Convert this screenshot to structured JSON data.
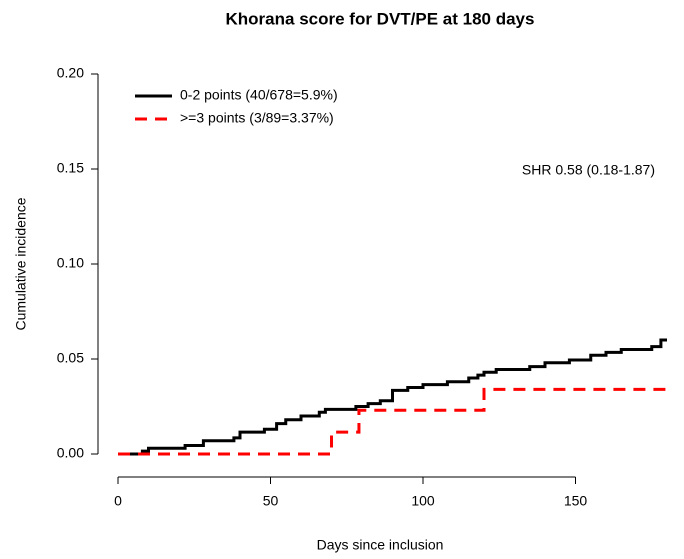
{
  "chart_data": {
    "type": "step",
    "title": "Khorana score for DVT/PE at 180 days",
    "x_label": "Days since inclusion",
    "y_label": "Cumulative incidence",
    "annotation": "SHR 0.58 (0.18-1.87)",
    "xlim": [
      0,
      180
    ],
    "ylim": [
      0,
      0.2
    ],
    "xticks": [
      0,
      50,
      100,
      150
    ],
    "yticks": [
      {
        "value": 0,
        "label": "0.00"
      },
      {
        "value": 0.05,
        "label": "0.05"
      },
      {
        "value": 0.1,
        "label": "0.10"
      },
      {
        "value": 0.15,
        "label": "0.15"
      },
      {
        "value": 0.2,
        "label": "0.20"
      }
    ],
    "legend": "top-left",
    "series": [
      {
        "name": "0-2 points (40/678=5.9%)",
        "color": "#000000",
        "dash": false,
        "x": [
          0,
          8,
          10,
          22,
          28,
          38,
          40,
          48,
          52,
          55,
          60,
          66,
          68,
          78,
          82,
          86,
          90,
          95,
          100,
          108,
          115,
          118,
          120,
          124,
          135,
          140,
          148,
          155,
          160,
          165,
          175,
          178,
          180
        ],
        "values": [
          0,
          0.0015,
          0.003,
          0.0045,
          0.007,
          0.0085,
          0.0115,
          0.013,
          0.016,
          0.018,
          0.02,
          0.022,
          0.0235,
          0.025,
          0.0265,
          0.028,
          0.0335,
          0.035,
          0.0365,
          0.038,
          0.04,
          0.0415,
          0.043,
          0.0445,
          0.046,
          0.048,
          0.0495,
          0.052,
          0.0535,
          0.055,
          0.0565,
          0.06,
          0.06
        ]
      },
      {
        "name": ">=3 points (3/89=3.37%)",
        "color": "#ff0000",
        "dash": true,
        "x": [
          0,
          70,
          79,
          120,
          180
        ],
        "values": [
          0,
          0.0115,
          0.023,
          0.034,
          0.034
        ]
      }
    ]
  }
}
